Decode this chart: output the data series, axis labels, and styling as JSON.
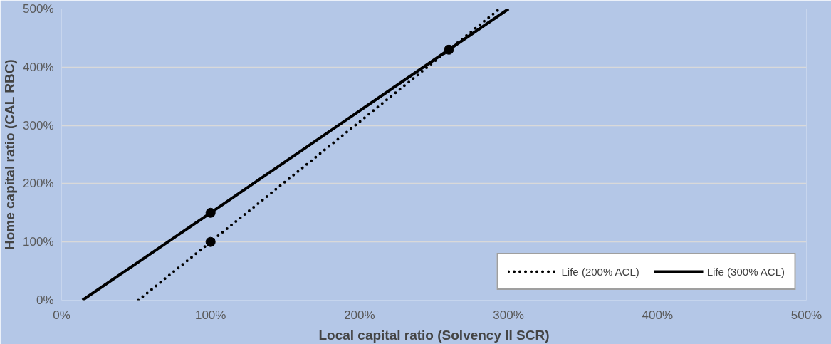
{
  "chart_data": {
    "type": "line",
    "xlabel": "Local capital ratio (Solvency II SCR)",
    "ylabel": "Home capital ratio (CAL RBC)",
    "xlim": [
      0,
      500
    ],
    "ylim": [
      0,
      500
    ],
    "xticks": [
      {
        "value": 0,
        "label": "0%"
      },
      {
        "value": 100,
        "label": "100%"
      },
      {
        "value": 200,
        "label": "200%"
      },
      {
        "value": 300,
        "label": "300%"
      },
      {
        "value": 400,
        "label": "400%"
      },
      {
        "value": 500,
        "label": "500%"
      }
    ],
    "yticks": [
      {
        "value": 0,
        "label": "0%"
      },
      {
        "value": 100,
        "label": "100%"
      },
      {
        "value": 200,
        "label": "200%"
      },
      {
        "value": 300,
        "label": "300%"
      },
      {
        "value": 400,
        "label": "400%"
      },
      {
        "value": 500,
        "label": "500%"
      }
    ],
    "grid": "y",
    "legend": "bottom right",
    "marker": "none",
    "series": [
      {
        "name": "Life (200% ACL)",
        "color": "#000000",
        "line_style": "dotted",
        "x": [
          51.5,
          100,
          260,
          294
        ],
        "values": [
          0,
          100,
          430,
          500
        ]
      },
      {
        "name": "Life (300% ACL)",
        "color": "#000000",
        "line_style": "solid",
        "x": [
          14,
          100,
          260,
          300
        ],
        "values": [
          0,
          150,
          430,
          500
        ]
      },
      {
        "type": "scatter",
        "color": "#000000",
        "marker": "circle",
        "x": [
          100,
          260,
          100
        ],
        "values": [
          100,
          430,
          150
        ]
      }
    ]
  }
}
